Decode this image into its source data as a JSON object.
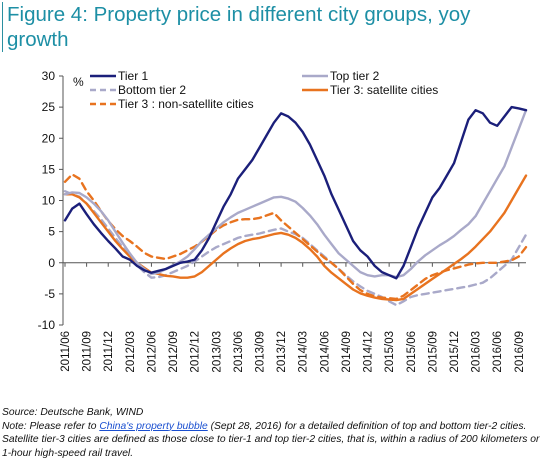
{
  "figure": {
    "title": "Figure 4: Property price in different city groups, yoy growth"
  },
  "chart_data": {
    "type": "line",
    "title": "Figure 4: Property price in different city groups, yoy growth",
    "ylabel": "%",
    "xlabel": "",
    "ylim": [
      -10,
      30
    ],
    "yticks": [
      -10,
      -5,
      0,
      5,
      10,
      15,
      20,
      25,
      30
    ],
    "xticks": [
      "2011/06",
      "2011/09",
      "2011/12",
      "2012/03",
      "2012/06",
      "2012/09",
      "2012/12",
      "2013/03",
      "2013/06",
      "2013/09",
      "2013/12",
      "2014/03",
      "2014/06",
      "2014/09",
      "2014/12",
      "2015/03",
      "2015/06",
      "2015/09",
      "2015/12",
      "2016/03",
      "2016/06",
      "2016/09"
    ],
    "grid": false,
    "legend": "top",
    "x": [
      "2011/06",
      "2011/07",
      "2011/08",
      "2011/09",
      "2011/10",
      "2011/11",
      "2011/12",
      "2012/01",
      "2012/02",
      "2012/03",
      "2012/04",
      "2012/05",
      "2012/06",
      "2012/07",
      "2012/08",
      "2012/09",
      "2012/10",
      "2012/11",
      "2012/12",
      "2013/01",
      "2013/02",
      "2013/03",
      "2013/04",
      "2013/05",
      "2013/06",
      "2013/07",
      "2013/08",
      "2013/09",
      "2013/10",
      "2013/11",
      "2013/12",
      "2014/01",
      "2014/02",
      "2014/03",
      "2014/04",
      "2014/05",
      "2014/06",
      "2014/07",
      "2014/08",
      "2014/09",
      "2014/10",
      "2014/11",
      "2014/12",
      "2015/01",
      "2015/02",
      "2015/03",
      "2015/04",
      "2015/05",
      "2015/06",
      "2015/07",
      "2015/08",
      "2015/09",
      "2015/10",
      "2015/11",
      "2015/12",
      "2016/01",
      "2016/02",
      "2016/03",
      "2016/04",
      "2016/05",
      "2016/06",
      "2016/07",
      "2016/08",
      "2016/09",
      "2016/10"
    ],
    "series": [
      {
        "name": "Tier 1",
        "color": "#1b1f7a",
        "dash": "solid",
        "values": [
          6.8,
          8.7,
          9.5,
          7.8,
          6.2,
          4.8,
          3.5,
          2.3,
          1.0,
          0.5,
          -0.5,
          -1.2,
          -1.6,
          -1.3,
          -1.0,
          -0.5,
          0.0,
          0.2,
          0.5,
          2.0,
          4.0,
          6.5,
          9.0,
          11.0,
          13.5,
          15.0,
          16.5,
          18.5,
          20.5,
          22.5,
          24.0,
          23.5,
          22.5,
          21.0,
          19.0,
          16.5,
          14.0,
          11.0,
          8.5,
          6.0,
          3.5,
          2.0,
          1.0,
          -0.5,
          -1.5,
          -2.0,
          -2.5,
          -0.5,
          2.5,
          5.5,
          8.0,
          10.5,
          12.0,
          14.0,
          16.0,
          19.5,
          23.0,
          24.5,
          24.0,
          22.5,
          22.0,
          23.5,
          25.0,
          24.8,
          24.5
        ]
      },
      {
        "name": "Top tier 2",
        "color": "#a9a9c9",
        "dash": "solid",
        "values": [
          11.0,
          11.3,
          11.2,
          10.5,
          9.5,
          8.3,
          6.8,
          5.0,
          3.2,
          1.5,
          0.0,
          -1.0,
          -1.8,
          -1.6,
          -1.0,
          -0.4,
          0.2,
          1.0,
          2.2,
          3.5,
          4.5,
          5.5,
          6.5,
          7.3,
          8.0,
          8.5,
          9.0,
          9.5,
          10.0,
          10.5,
          10.6,
          10.3,
          9.8,
          8.8,
          7.6,
          6.2,
          4.5,
          3.0,
          1.5,
          0.5,
          -0.5,
          -1.5,
          -2.0,
          -2.2,
          -2.0,
          -2.0,
          -2.3,
          -2.0,
          -1.0,
          0.2,
          1.2,
          2.0,
          2.8,
          3.5,
          4.3,
          5.3,
          6.2,
          7.5,
          9.5,
          11.5,
          13.5,
          15.5,
          18.5,
          21.5,
          24.5
        ]
      },
      {
        "name": "Bottom tier 2",
        "color": "#a9a9c9",
        "dash": "dashed",
        "values": [
          11.5,
          11.0,
          10.6,
          9.5,
          8.3,
          7.0,
          5.5,
          4.0,
          2.5,
          1.0,
          -0.4,
          -1.5,
          -2.4,
          -2.3,
          -2.0,
          -1.5,
          -1.0,
          -0.5,
          0.2,
          1.0,
          1.8,
          2.5,
          3.0,
          3.5,
          4.0,
          4.3,
          4.5,
          4.7,
          5.0,
          5.3,
          5.5,
          5.0,
          4.6,
          4.0,
          3.0,
          2.0,
          1.0,
          0.0,
          -1.0,
          -2.0,
          -3.0,
          -3.8,
          -4.5,
          -5.0,
          -5.5,
          -6.2,
          -6.8,
          -6.2,
          -5.5,
          -5.2,
          -5.0,
          -4.8,
          -4.6,
          -4.4,
          -4.2,
          -4.0,
          -3.8,
          -3.5,
          -3.2,
          -2.5,
          -1.5,
          -0.5,
          0.5,
          2.5,
          4.5
        ]
      },
      {
        "name": "Tier 3: satellite cities",
        "color": "#e8731f",
        "dash": "solid",
        "values": [
          11.0,
          11.0,
          10.5,
          9.5,
          8.0,
          6.5,
          5.0,
          3.5,
          2.2,
          1.0,
          0.0,
          -0.8,
          -1.6,
          -1.8,
          -2.1,
          -2.2,
          -2.4,
          -2.4,
          -2.2,
          -1.5,
          -0.5,
          0.5,
          1.5,
          2.3,
          3.0,
          3.5,
          3.8,
          4.0,
          4.3,
          4.6,
          4.8,
          4.5,
          4.0,
          3.2,
          2.2,
          1.0,
          -0.5,
          -1.6,
          -2.5,
          -3.4,
          -4.3,
          -4.9,
          -5.3,
          -5.6,
          -5.8,
          -5.9,
          -6.0,
          -5.8,
          -5.0,
          -4.2,
          -3.4,
          -2.6,
          -1.8,
          -1.0,
          -0.2,
          0.6,
          1.5,
          2.6,
          3.8,
          5.0,
          6.5,
          8.0,
          10.0,
          12.0,
          14.0
        ]
      },
      {
        "name": "Tier 3 : non-satellite cities",
        "color": "#e8731f",
        "dash": "dashed",
        "values": [
          13.0,
          14.2,
          13.5,
          11.5,
          10.0,
          8.3,
          6.7,
          5.4,
          4.3,
          3.5,
          2.6,
          1.6,
          1.0,
          0.8,
          0.6,
          1.0,
          1.4,
          2.0,
          2.6,
          3.4,
          4.3,
          5.3,
          6.0,
          6.5,
          6.9,
          7.0,
          7.0,
          7.2,
          7.6,
          8.0,
          6.8,
          5.8,
          4.8,
          3.8,
          2.8,
          1.8,
          0.8,
          0.0,
          -1.0,
          -2.2,
          -3.4,
          -4.4,
          -5.0,
          -5.4,
          -5.6,
          -5.7,
          -5.8,
          -5.3,
          -4.4,
          -3.5,
          -2.6,
          -2.0,
          -1.6,
          -1.2,
          -0.9,
          -0.6,
          -0.3,
          -0.1,
          0.0,
          0.0,
          0.0,
          0.2,
          0.4,
          1.0,
          2.5
        ]
      }
    ]
  },
  "notes": {
    "source": "Source: Deutsche Bank, WIND",
    "note_prefix": "Note: Please refer to ",
    "note_link": "China's property bubble",
    "note_rest": " (Sept 28, 2016) for a detailed definition of top and bottom tier-2 cities. Satellite tier-3 cities are defined as those close to tier-1 and top tier-2 cities, that is, within a radius of 200 kilometers or 1-hour high-speed rail travel."
  }
}
